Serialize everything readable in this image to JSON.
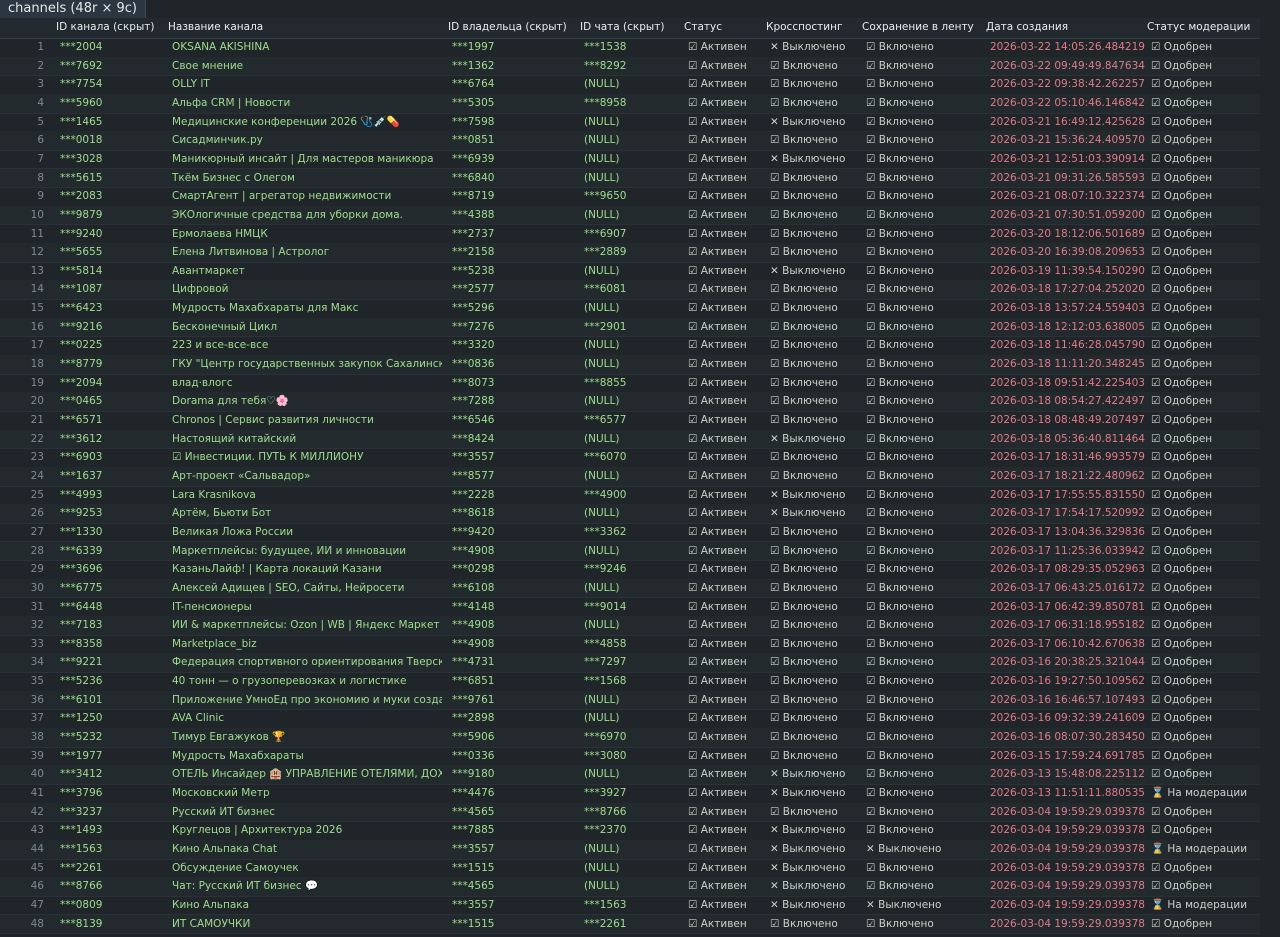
{
  "header": {
    "title": "channels (48r × 9c)"
  },
  "table": {
    "columns": [
      "ID канала (скрыт)",
      "Название канала",
      "ID владельца (скрыт)",
      "ID чата (скрыт)",
      "Статус",
      "Кросспостинг",
      "Сохранение в ленту",
      "Дата создания",
      "Статус модерации"
    ],
    "rows": [
      [
        1,
        "***2004",
        "OKSANA AKISHINA",
        "***1997",
        "***1538",
        "☑ Активен",
        "✕ Выключено",
        "☑ Включено",
        "2026-03-22 14:05:26.484219",
        "☑ Одобрен"
      ],
      [
        2,
        "***7692",
        "Свое мнение",
        "***1362",
        "***8292",
        "☑ Активен",
        "☑ Включено",
        "☑ Включено",
        "2026-03-22 09:49:49.847634",
        "☑ Одобрен"
      ],
      [
        3,
        "***7754",
        "OLLY IT",
        "***6764",
        "(NULL)",
        "☑ Активен",
        "☑ Включено",
        "☑ Включено",
        "2026-03-22 09:38:42.262257",
        "☑ Одобрен"
      ],
      [
        4,
        "***5960",
        "Альфа CRM | Новости",
        "***5305",
        "***8958",
        "☑ Активен",
        "☑ Включено",
        "☑ Включено",
        "2026-03-22 05:10:46.146842",
        "☑ Одобрен"
      ],
      [
        5,
        "***1465",
        "Медицинские конференции 2026 🩺💉💊",
        "***7598",
        "(NULL)",
        "☑ Активен",
        "✕ Выключено",
        "☑ Включено",
        "2026-03-21 16:49:12.425628",
        "☑ Одобрен"
      ],
      [
        6,
        "***0018",
        "Сисадминчик.ру",
        "***0851",
        "(NULL)",
        "☑ Активен",
        "☑ Включено",
        "☑ Включено",
        "2026-03-21 15:36:24.409570",
        "☑ Одобрен"
      ],
      [
        7,
        "***3028",
        "Маникюрный инсайт | Для мастеров маникюра",
        "***6939",
        "(NULL)",
        "☑ Активен",
        "✕ Выключено",
        "☑ Включено",
        "2026-03-21 12:51:03.390914",
        "☑ Одобрен"
      ],
      [
        8,
        "***5615",
        "Ткём Бизнес с Олегом",
        "***6840",
        "(NULL)",
        "☑ Активен",
        "☑ Включено",
        "☑ Включено",
        "2026-03-21 09:31:26.585593",
        "☑ Одобрен"
      ],
      [
        9,
        "***2083",
        "СмартАгент | агрегатор недвижимости",
        "***8719",
        "***9650",
        "☑ Активен",
        "☑ Включено",
        "☑ Включено",
        "2026-03-21 08:07:10.322374",
        "☑ Одобрен"
      ],
      [
        10,
        "***9879",
        "ЭКОлогичные средства для уборки дома.",
        "***4388",
        "(NULL)",
        "☑ Активен",
        "☑ Включено",
        "☑ Включено",
        "2026-03-21 07:30:51.059200",
        "☑ Одобрен"
      ],
      [
        11,
        "***9240",
        "Ермолаева НМЦК",
        "***2737",
        "***6907",
        "☑ Активен",
        "☑ Включено",
        "☑ Включено",
        "2026-03-20 18:12:06.501689",
        "☑ Одобрен"
      ],
      [
        12,
        "***5655",
        "Елена Литвинова | Астролог",
        "***2158",
        "***2889",
        "☑ Активен",
        "☑ Включено",
        "☑ Включено",
        "2026-03-20 16:39:08.209653",
        "☑ Одобрен"
      ],
      [
        13,
        "***5814",
        "Авантмаркет",
        "***5238",
        "(NULL)",
        "☑ Активен",
        "✕ Выключено",
        "☑ Включено",
        "2026-03-19 11:39:54.150290",
        "☑ Одобрен"
      ],
      [
        14,
        "***1087",
        "Цифровой",
        "***2577",
        "***6081",
        "☑ Активен",
        "☑ Включено",
        "☑ Включено",
        "2026-03-18 17:27:04.252020",
        "☑ Одобрен"
      ],
      [
        15,
        "***6423",
        "Мудрость Махабхараты для Макс",
        "***5296",
        "(NULL)",
        "☑ Активен",
        "☑ Включено",
        "☑ Включено",
        "2026-03-18 13:57:24.559403",
        "☑ Одобрен"
      ],
      [
        16,
        "***9216",
        "Бесконечный Цикл",
        "***7276",
        "***2901",
        "☑ Активен",
        "☑ Включено",
        "☑ Включено",
        "2026-03-18 12:12:03.638005",
        "☑ Одобрен"
      ],
      [
        17,
        "***0225",
        "223 и все-все-все",
        "***3320",
        "(NULL)",
        "☑ Активен",
        "☑ Включено",
        "☑ Включено",
        "2026-03-18 11:46:28.045790",
        "☑ Одобрен"
      ],
      [
        18,
        "***8779",
        "ГКУ \"Центр государственных закупок Сахалинской ...",
        "***0836",
        "(NULL)",
        "☑ Активен",
        "☑ Включено",
        "☑ Включено",
        "2026-03-18 11:11:20.348245",
        "☑ Одобрен"
      ],
      [
        19,
        "***2094",
        "влад·влогс",
        "***8073",
        "***8855",
        "☑ Активен",
        "☑ Включено",
        "☑ Включено",
        "2026-03-18 09:51:42.225403",
        "☑ Одобрен"
      ],
      [
        20,
        "***0465",
        "Dorama для тебя♡🌸",
        "***7288",
        "(NULL)",
        "☑ Активен",
        "☑ Включено",
        "☑ Включено",
        "2026-03-18 08:54:27.422497",
        "☑ Одобрен"
      ],
      [
        21,
        "***6571",
        "Chronos | Сервис развития личности",
        "***6546",
        "***6577",
        "☑ Активен",
        "☑ Включено",
        "☑ Включено",
        "2026-03-18 08:48:49.207497",
        "☑ Одобрен"
      ],
      [
        22,
        "***3612",
        "Настоящий китайский",
        "***8424",
        "(NULL)",
        "☑ Активен",
        "✕ Выключено",
        "☑ Включено",
        "2026-03-18 05:36:40.811464",
        "☑ Одобрен"
      ],
      [
        23,
        "***6903",
        "☑ Инвестиции. ПУТЬ К МИЛЛИОНУ",
        "***3557",
        "***6070",
        "☑ Активен",
        "☑ Включено",
        "☑ Включено",
        "2026-03-17 18:31:46.993579",
        "☑ Одобрен"
      ],
      [
        24,
        "***1637",
        "Арт-проект «Сальвадор»",
        "***8577",
        "(NULL)",
        "☑ Активен",
        "☑ Включено",
        "☑ Включено",
        "2026-03-17 18:21:22.480962",
        "☑ Одобрен"
      ],
      [
        25,
        "***4993",
        "Lara Krasnikova",
        "***2228",
        "***4900",
        "☑ Активен",
        "✕ Выключено",
        "☑ Включено",
        "2026-03-17 17:55:55.831550",
        "☑ Одобрен"
      ],
      [
        26,
        "***9253",
        "Артём, Бьюти Бот",
        "***8618",
        "(NULL)",
        "☑ Активен",
        "✕ Выключено",
        "☑ Включено",
        "2026-03-17 17:54:17.520992",
        "☑ Одобрен"
      ],
      [
        27,
        "***1330",
        "Великая Ложа России",
        "***9420",
        "***3362",
        "☑ Активен",
        "☑ Включено",
        "☑ Включено",
        "2026-03-17 13:04:36.329836",
        "☑ Одобрен"
      ],
      [
        28,
        "***6339",
        "Маркетплейсы: будущее, ИИ и инновации",
        "***4908",
        "(NULL)",
        "☑ Активен",
        "☑ Включено",
        "☑ Включено",
        "2026-03-17 11:25:36.033942",
        "☑ Одобрен"
      ],
      [
        29,
        "***3696",
        "КазаньЛайф! | Карта локаций Казани",
        "***0298",
        "***9246",
        "☑ Активен",
        "☑ Включено",
        "☑ Включено",
        "2026-03-17 08:29:35.052963",
        "☑ Одобрен"
      ],
      [
        30,
        "***6775",
        "Алексей Адищев | SEO, Сайты, Нейросети",
        "***6108",
        "(NULL)",
        "☑ Активен",
        "☑ Включено",
        "☑ Включено",
        "2026-03-17 06:43:25.016172",
        "☑ Одобрен"
      ],
      [
        31,
        "***6448",
        "IT-пенсионеры",
        "***4148",
        "***9014",
        "☑ Активен",
        "☑ Включено",
        "☑ Включено",
        "2026-03-17 06:42:39.850781",
        "☑ Одобрен"
      ],
      [
        32,
        "***7183",
        "ИИ & маркетплейсы: Ozon | WB | Яндекс Маркет",
        "***4908",
        "(NULL)",
        "☑ Активен",
        "☑ Включено",
        "☑ Включено",
        "2026-03-17 06:31:18.955182",
        "☑ Одобрен"
      ],
      [
        33,
        "***8358",
        "Marketplace_biz",
        "***4908",
        "***4858",
        "☑ Активен",
        "☑ Включено",
        "☑ Включено",
        "2026-03-17 06:10:42.670638",
        "☑ Одобрен"
      ],
      [
        34,
        "***9221",
        "Федерация спортивного ориентирования Тверской о...",
        "***4731",
        "***7297",
        "☑ Активен",
        "☑ Включено",
        "☑ Включено",
        "2026-03-16 20:38:25.321044",
        "☑ Одобрен"
      ],
      [
        35,
        "***5236",
        "40 тонн — о грузоперевозках и логистике",
        "***6851",
        "***1568",
        "☑ Активен",
        "☑ Включено",
        "☑ Включено",
        "2026-03-16 19:27:50.109562",
        "☑ Одобрен"
      ],
      [
        36,
        "***6101",
        "Приложение УмноЕд про экономию и муки создания",
        "***9761",
        "(NULL)",
        "☑ Активен",
        "☑ Включено",
        "☑ Включено",
        "2026-03-16 16:46:57.107493",
        "☑ Одобрен"
      ],
      [
        37,
        "***1250",
        "AVA Clinic",
        "***2898",
        "(NULL)",
        "☑ Активен",
        "☑ Включено",
        "☑ Включено",
        "2026-03-16 09:32:39.241609",
        "☑ Одобрен"
      ],
      [
        38,
        "***5232",
        "Тимур Евгажуков 🏆",
        "***5906",
        "***6970",
        "☑ Активен",
        "☑ Включено",
        "☑ Включено",
        "2026-03-16 08:07:30.283450",
        "☑ Одобрен"
      ],
      [
        39,
        "***1977",
        "Мудрость Махабхараты",
        "***0336",
        "***3080",
        "☑ Активен",
        "☑ Включено",
        "☑ Включено",
        "2026-03-15 17:59:24.691785",
        "☑ Одобрен"
      ],
      [
        40,
        "***3412",
        "ОТЕЛЬ Инсайдер 🏨 УПРАВЛЕНИЕ ОТЕЛЯМИ, ДОХОД...",
        "***9180",
        "(NULL)",
        "☑ Активен",
        "✕ Выключено",
        "☑ Включено",
        "2026-03-13 15:48:08.225112",
        "☑ Одобрен"
      ],
      [
        41,
        "***3796",
        "Московский Метр",
        "***4476",
        "***3927",
        "☑ Активен",
        "✕ Выключено",
        "☑ Включено",
        "2026-03-13 11:51:11.880535",
        "⌛ На модерации"
      ],
      [
        42,
        "***3237",
        "Русский ИТ бизнес",
        "***4565",
        "***8766",
        "☑ Активен",
        "☑ Включено",
        "☑ Включено",
        "2026-03-04 19:59:29.039378",
        "☑ Одобрен"
      ],
      [
        43,
        "***1493",
        "Круглецов | Архитектура 2026",
        "***7885",
        "***2370",
        "☑ Активен",
        "✕ Выключено",
        "☑ Включено",
        "2026-03-04 19:59:29.039378",
        "☑ Одобрен"
      ],
      [
        44,
        "***1563",
        "Кино Альпака Chat",
        "***3557",
        "(NULL)",
        "☑ Активен",
        "✕ Выключено",
        "✕ Выключено",
        "2026-03-04 19:59:29.039378",
        "⌛ На модерации"
      ],
      [
        45,
        "***2261",
        "Обсуждение Самоучек",
        "***1515",
        "(NULL)",
        "☑ Активен",
        "✕ Выключено",
        "☑ Включено",
        "2026-03-04 19:59:29.039378",
        "☑ Одобрен"
      ],
      [
        46,
        "***8766",
        "Чат: Русский ИТ бизнес 💬",
        "***4565",
        "(NULL)",
        "☑ Активен",
        "✕ Выключено",
        "☑ Включено",
        "2026-03-04 19:59:29.039378",
        "☑ Одобрен"
      ],
      [
        47,
        "***0809",
        "Кино Альпака",
        "***3557",
        "***1563",
        "☑ Активен",
        "✕ Выключено",
        "✕ Выключено",
        "2026-03-04 19:59:29.039378",
        "⌛ На модерации"
      ],
      [
        48,
        "***8139",
        "ИТ САМОУЧКИ",
        "***1515",
        "***2261",
        "☑ Активен",
        "☑ Включено",
        "☑ Включено",
        "2026-03-04 19:59:29.039378",
        "☑ Одобрен"
      ]
    ]
  }
}
